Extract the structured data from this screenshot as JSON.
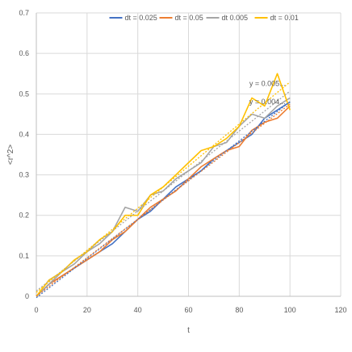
{
  "chart_data": {
    "type": "line",
    "title": "",
    "xlabel": "t",
    "ylabel": "<r^2>",
    "xlim": [
      0,
      120
    ],
    "ylim": [
      0,
      0.7
    ],
    "xticks": [
      "0",
      "20",
      "40",
      "60",
      "80",
      "100",
      "120"
    ],
    "yticks": [
      "0",
      "0.1",
      "0.2",
      "0.3",
      "0.4",
      "0.5",
      "0.6",
      "0.7"
    ],
    "grid": true,
    "legend_position": "top",
    "series": [
      {
        "name": "dt = 0.025",
        "color": "#4472C4",
        "x": [
          0,
          5,
          10,
          15,
          20,
          25,
          30,
          35,
          40,
          45,
          50,
          55,
          60,
          65,
          70,
          75,
          80,
          85,
          90,
          95,
          100
        ],
        "y": [
          0,
          0.03,
          0.05,
          0.07,
          0.09,
          0.11,
          0.13,
          0.16,
          0.19,
          0.21,
          0.24,
          0.27,
          0.29,
          0.31,
          0.34,
          0.36,
          0.38,
          0.4,
          0.44,
          0.46,
          0.48
        ]
      },
      {
        "name": "dt = 0.05",
        "color": "#ED7D31",
        "x": [
          0,
          5,
          10,
          15,
          20,
          25,
          30,
          35,
          40,
          45,
          50,
          55,
          60,
          65,
          70,
          75,
          80,
          85,
          90,
          95,
          100
        ],
        "y": [
          0,
          0.03,
          0.05,
          0.07,
          0.09,
          0.11,
          0.14,
          0.16,
          0.19,
          0.22,
          0.24,
          0.26,
          0.29,
          0.32,
          0.34,
          0.36,
          0.37,
          0.41,
          0.43,
          0.44,
          0.47
        ]
      },
      {
        "name": "dt 0.005",
        "color": "#A5A5A5",
        "x": [
          0,
          5,
          10,
          15,
          20,
          25,
          30,
          35,
          40,
          45,
          50,
          55,
          60,
          65,
          70,
          75,
          80,
          85,
          90,
          95,
          100
        ],
        "y": [
          0,
          0.03,
          0.06,
          0.08,
          0.11,
          0.13,
          0.16,
          0.22,
          0.21,
          0.25,
          0.26,
          0.29,
          0.31,
          0.33,
          0.37,
          0.38,
          0.42,
          0.45,
          0.44,
          0.47,
          0.49
        ]
      },
      {
        "name": "dt = 0.01",
        "color": "#FFC000",
        "x": [
          0,
          5,
          10,
          15,
          20,
          25,
          30,
          35,
          40,
          45,
          50,
          55,
          60,
          65,
          70,
          75,
          80,
          85,
          90,
          95,
          100
        ],
        "y": [
          0,
          0.04,
          0.06,
          0.09,
          0.11,
          0.14,
          0.16,
          0.2,
          0.2,
          0.25,
          0.27,
          0.3,
          0.33,
          0.36,
          0.37,
          0.39,
          0.42,
          0.49,
          0.47,
          0.55,
          0.46
        ]
      }
    ]
  },
  "equations": [
    "y = 0.005...",
    "y = 0.004..."
  ]
}
